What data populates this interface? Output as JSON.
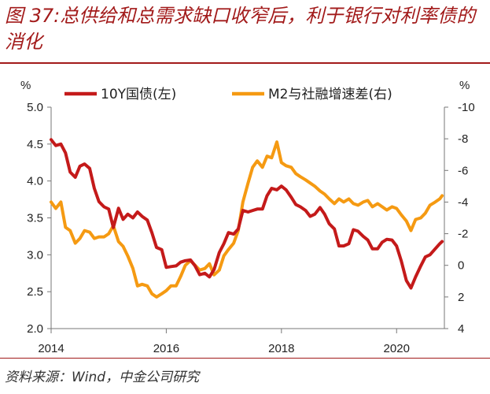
{
  "title": "图 37:总供给和总需求缺口收窄后，利于银行对利率债的消化",
  "source": "资料来源：Wind，中金公司研究",
  "chart_data": {
    "type": "line",
    "title": "图 37:总供给和总需求缺口收窄后，利于银行对利率债的消化",
    "left_axis": {
      "unit": "%",
      "min": 2.0,
      "max": 5.0,
      "ticks": [
        "2.0",
        "2.5",
        "3.0",
        "3.5",
        "4.0",
        "4.5",
        "5.0"
      ]
    },
    "right_axis": {
      "unit": "%",
      "inverted": true,
      "min": -10,
      "max": 4,
      "ticks": [
        "-10",
        "-8",
        "-6",
        "-4",
        "-2",
        "0",
        "2",
        "4"
      ]
    },
    "x_axis": {
      "min": 2014.0,
      "max": 2020.83,
      "ticks": [
        "2014",
        "2016",
        "2018",
        "2020"
      ]
    },
    "series": [
      {
        "name": "10Y国债(左)",
        "axis": "left",
        "color": "#c41a1a",
        "points": [
          [
            2014.0,
            4.56
          ],
          [
            2014.08,
            4.48
          ],
          [
            2014.17,
            4.5
          ],
          [
            2014.25,
            4.38
          ],
          [
            2014.33,
            4.12
          ],
          [
            2014.42,
            4.05
          ],
          [
            2014.5,
            4.2
          ],
          [
            2014.58,
            4.23
          ],
          [
            2014.67,
            4.17
          ],
          [
            2014.75,
            3.9
          ],
          [
            2014.83,
            3.72
          ],
          [
            2014.92,
            3.65
          ],
          [
            2015.0,
            3.62
          ],
          [
            2015.08,
            3.37
          ],
          [
            2015.17,
            3.63
          ],
          [
            2015.25,
            3.48
          ],
          [
            2015.33,
            3.55
          ],
          [
            2015.42,
            3.5
          ],
          [
            2015.5,
            3.58
          ],
          [
            2015.58,
            3.52
          ],
          [
            2015.67,
            3.47
          ],
          [
            2015.75,
            3.3
          ],
          [
            2015.83,
            3.1
          ],
          [
            2015.92,
            3.07
          ],
          [
            2016.0,
            2.83
          ],
          [
            2016.08,
            2.84
          ],
          [
            2016.17,
            2.85
          ],
          [
            2016.25,
            2.9
          ],
          [
            2016.33,
            2.92
          ],
          [
            2016.42,
            2.93
          ],
          [
            2016.5,
            2.85
          ],
          [
            2016.58,
            2.73
          ],
          [
            2016.67,
            2.75
          ],
          [
            2016.75,
            2.7
          ],
          [
            2016.83,
            2.8
          ],
          [
            2016.92,
            3.03
          ],
          [
            2017.0,
            3.15
          ],
          [
            2017.08,
            3.3
          ],
          [
            2017.17,
            3.28
          ],
          [
            2017.25,
            3.35
          ],
          [
            2017.33,
            3.6
          ],
          [
            2017.42,
            3.58
          ],
          [
            2017.5,
            3.6
          ],
          [
            2017.58,
            3.62
          ],
          [
            2017.67,
            3.62
          ],
          [
            2017.75,
            3.8
          ],
          [
            2017.83,
            3.9
          ],
          [
            2017.92,
            3.88
          ],
          [
            2018.0,
            3.93
          ],
          [
            2018.08,
            3.88
          ],
          [
            2018.17,
            3.78
          ],
          [
            2018.25,
            3.68
          ],
          [
            2018.33,
            3.65
          ],
          [
            2018.42,
            3.6
          ],
          [
            2018.5,
            3.52
          ],
          [
            2018.58,
            3.55
          ],
          [
            2018.67,
            3.64
          ],
          [
            2018.75,
            3.55
          ],
          [
            2018.83,
            3.42
          ],
          [
            2018.92,
            3.35
          ],
          [
            2019.0,
            3.12
          ],
          [
            2019.08,
            3.12
          ],
          [
            2019.17,
            3.15
          ],
          [
            2019.25,
            3.34
          ],
          [
            2019.33,
            3.32
          ],
          [
            2019.42,
            3.25
          ],
          [
            2019.5,
            3.2
          ],
          [
            2019.58,
            3.08
          ],
          [
            2019.67,
            3.08
          ],
          [
            2019.75,
            3.17
          ],
          [
            2019.83,
            3.21
          ],
          [
            2019.92,
            3.2
          ],
          [
            2020.0,
            3.12
          ],
          [
            2020.08,
            2.92
          ],
          [
            2020.17,
            2.65
          ],
          [
            2020.25,
            2.55
          ],
          [
            2020.33,
            2.7
          ],
          [
            2020.42,
            2.85
          ],
          [
            2020.5,
            2.97
          ],
          [
            2020.58,
            3.0
          ],
          [
            2020.67,
            3.08
          ],
          [
            2020.75,
            3.15
          ],
          [
            2020.79,
            3.18
          ]
        ]
      },
      {
        "name": "M2与社融增速差(右)",
        "axis": "right",
        "color": "#f59a12",
        "points": [
          [
            2014.0,
            -4.0
          ],
          [
            2014.08,
            -3.6
          ],
          [
            2014.17,
            -4.0
          ],
          [
            2014.25,
            -2.4
          ],
          [
            2014.33,
            -2.2
          ],
          [
            2014.42,
            -1.4
          ],
          [
            2014.5,
            -1.7
          ],
          [
            2014.58,
            -2.2
          ],
          [
            2014.67,
            -2.1
          ],
          [
            2014.75,
            -1.7
          ],
          [
            2014.83,
            -1.8
          ],
          [
            2014.92,
            -1.8
          ],
          [
            2015.0,
            -2.0
          ],
          [
            2015.08,
            -2.5
          ],
          [
            2015.17,
            -1.5
          ],
          [
            2015.25,
            -1.2
          ],
          [
            2015.33,
            -0.6
          ],
          [
            2015.42,
            0.2
          ],
          [
            2015.5,
            1.3
          ],
          [
            2015.58,
            1.2
          ],
          [
            2015.67,
            1.3
          ],
          [
            2015.75,
            1.8
          ],
          [
            2015.83,
            2.0
          ],
          [
            2015.92,
            1.8
          ],
          [
            2016.0,
            1.6
          ],
          [
            2016.08,
            1.3
          ],
          [
            2016.17,
            1.3
          ],
          [
            2016.25,
            0.7
          ],
          [
            2016.33,
            0.0
          ],
          [
            2016.42,
            -0.3
          ],
          [
            2016.5,
            0.0
          ],
          [
            2016.58,
            0.3
          ],
          [
            2016.67,
            0.2
          ],
          [
            2016.75,
            -0.1
          ],
          [
            2016.83,
            0.6
          ],
          [
            2016.92,
            0.3
          ],
          [
            2017.0,
            -0.6
          ],
          [
            2017.08,
            -1.0
          ],
          [
            2017.17,
            -1.4
          ],
          [
            2017.25,
            -2.2
          ],
          [
            2017.33,
            -4.0
          ],
          [
            2017.42,
            -5.2
          ],
          [
            2017.5,
            -6.2
          ],
          [
            2017.58,
            -6.6
          ],
          [
            2017.67,
            -6.2
          ],
          [
            2017.75,
            -6.9
          ],
          [
            2017.83,
            -6.8
          ],
          [
            2017.92,
            -7.8
          ],
          [
            2018.0,
            -6.5
          ],
          [
            2018.08,
            -6.3
          ],
          [
            2018.17,
            -6.2
          ],
          [
            2018.25,
            -5.8
          ],
          [
            2018.33,
            -5.6
          ],
          [
            2018.42,
            -5.4
          ],
          [
            2018.5,
            -5.2
          ],
          [
            2018.58,
            -5.0
          ],
          [
            2018.67,
            -4.7
          ],
          [
            2018.75,
            -4.5
          ],
          [
            2018.83,
            -4.2
          ],
          [
            2018.92,
            -3.9
          ],
          [
            2019.0,
            -4.2
          ],
          [
            2019.08,
            -4.0
          ],
          [
            2019.17,
            -4.2
          ],
          [
            2019.25,
            -3.9
          ],
          [
            2019.33,
            -3.8
          ],
          [
            2019.42,
            -4.0
          ],
          [
            2019.5,
            -4.1
          ],
          [
            2019.58,
            -3.7
          ],
          [
            2019.67,
            -3.9
          ],
          [
            2019.75,
            -3.7
          ],
          [
            2019.83,
            -3.5
          ],
          [
            2019.92,
            -3.7
          ],
          [
            2020.0,
            -3.6
          ],
          [
            2020.08,
            -3.2
          ],
          [
            2020.17,
            -2.8
          ],
          [
            2020.25,
            -2.2
          ],
          [
            2020.33,
            -2.9
          ],
          [
            2020.42,
            -3.0
          ],
          [
            2020.5,
            -3.3
          ],
          [
            2020.58,
            -3.8
          ],
          [
            2020.67,
            -4.0
          ],
          [
            2020.75,
            -4.2
          ],
          [
            2020.79,
            -4.4
          ]
        ]
      }
    ],
    "legend": {
      "placement": "top",
      "items": [
        "10Y国债(左)",
        "M2与社融增速差(右)"
      ]
    }
  }
}
